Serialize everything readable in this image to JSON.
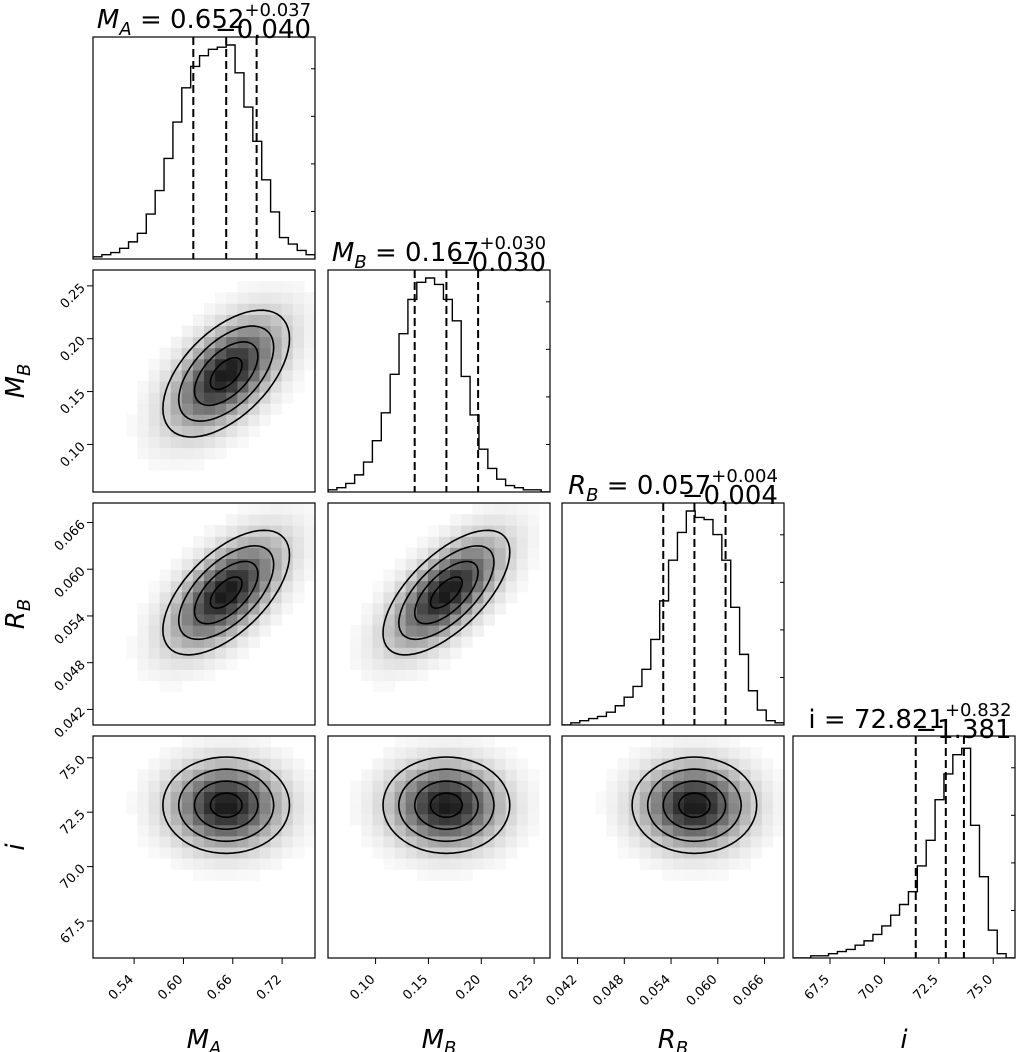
{
  "chart_data": {
    "type": "corner",
    "parameters": [
      {
        "key": "MA",
        "axis_label": "M",
        "axis_sub": "A",
        "range": [
          0.49,
          0.76
        ],
        "ticks": [
          "0.54",
          "0.60",
          "0.66",
          "0.72"
        ],
        "tick_values": [
          0.54,
          0.6,
          0.66,
          0.72
        ],
        "median": 0.652,
        "plus": 0.037,
        "minus": 0.04,
        "title": {
          "sym": "M",
          "sub": "A",
          "value": "0.652",
          "plus": "+0.037",
          "minus": "−0.040"
        }
      },
      {
        "key": "MB",
        "axis_label": "M",
        "axis_sub": "B",
        "range": [
          0.055,
          0.265
        ],
        "ticks": [
          "0.10",
          "0.15",
          "0.20",
          "0.25"
        ],
        "tick_values": [
          0.1,
          0.15,
          0.2,
          0.25
        ],
        "median": 0.167,
        "plus": 0.03,
        "minus": 0.03,
        "title": {
          "sym": "M",
          "sub": "B",
          "value": "0.167",
          "plus": "+0.030",
          "minus": "−0.030"
        }
      },
      {
        "key": "RB",
        "axis_label": "R",
        "axis_sub": "B",
        "range": [
          0.04,
          0.0685
        ],
        "ticks": [
          "0.042",
          "0.048",
          "0.054",
          "0.060",
          "0.066"
        ],
        "tick_values": [
          0.042,
          0.048,
          0.054,
          0.06,
          0.066
        ],
        "median": 0.057,
        "plus": 0.004,
        "minus": 0.004,
        "title": {
          "sym": "R",
          "sub": "B",
          "value": "0.057",
          "plus": "+0.004",
          "minus": "−0.004"
        }
      },
      {
        "key": "i",
        "axis_label": "i",
        "axis_sub": "",
        "range": [
          65.8,
          76.0
        ],
        "ticks": [
          "67.5",
          "70.0",
          "72.5",
          "75.0"
        ],
        "tick_values": [
          67.5,
          70.0,
          72.5,
          75.0
        ],
        "median": 72.821,
        "plus": 0.832,
        "minus": 1.381,
        "title": {
          "sym": "i",
          "sub": "",
          "value": "72.821",
          "plus": "+0.832",
          "minus": "−1.381"
        }
      }
    ],
    "histograms": [
      [
        0.01,
        0.02,
        0.03,
        0.05,
        0.08,
        0.12,
        0.21,
        0.32,
        0.47,
        0.64,
        0.8,
        0.9,
        0.95,
        0.98,
        0.99,
        1.0,
        0.87,
        0.71,
        0.55,
        0.37,
        0.22,
        0.1,
        0.07,
        0.04,
        0.02
      ],
      [
        0.01,
        0.02,
        0.04,
        0.08,
        0.14,
        0.24,
        0.37,
        0.55,
        0.74,
        0.9,
        0.98,
        1.0,
        0.97,
        0.9,
        0.8,
        0.54,
        0.36,
        0.2,
        0.11,
        0.06,
        0.03,
        0.02,
        0.01,
        0.01,
        0.0
      ],
      [
        0.0,
        0.01,
        0.02,
        0.03,
        0.04,
        0.06,
        0.09,
        0.13,
        0.18,
        0.26,
        0.4,
        0.58,
        0.77,
        0.9,
        1.0,
        0.97,
        0.96,
        0.89,
        0.77,
        0.55,
        0.33,
        0.16,
        0.07,
        0.02,
        0.01
      ],
      [
        0.0,
        0.0,
        0.01,
        0.01,
        0.02,
        0.03,
        0.04,
        0.06,
        0.08,
        0.11,
        0.15,
        0.2,
        0.25,
        0.31,
        0.43,
        0.55,
        0.74,
        0.86,
        0.95,
        0.98,
        0.62,
        0.38,
        0.13,
        0.02,
        0.0
      ]
    ],
    "correlations": {
      "1,0": 0.55,
      "2,0": 0.6,
      "2,1": 0.65,
      "3,0": 0.0,
      "3,1": 0.0,
      "3,2": 0.0
    },
    "quantile_lines": "dashed",
    "contours": true,
    "density_shading": "grayscale"
  }
}
